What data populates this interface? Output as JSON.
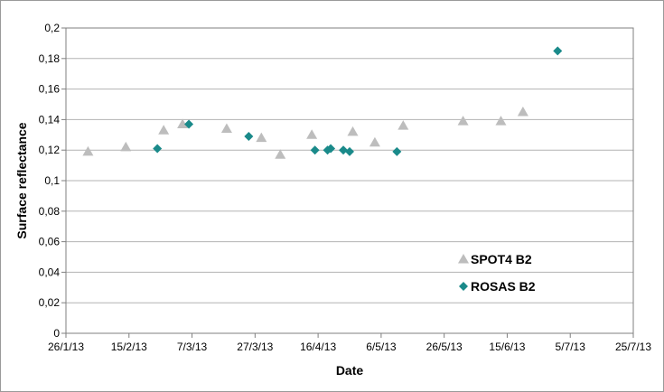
{
  "chart_data": {
    "type": "scatter",
    "title": "",
    "xlabel": "Date",
    "ylabel": "Surface reflectance",
    "ylim": [
      0,
      0.2
    ],
    "yticks": [
      "0",
      "0,02",
      "0,04",
      "0,06",
      "0,08",
      "0,1",
      "0,12",
      "0,14",
      "0,16",
      "0,18",
      "0,2"
    ],
    "xlim": [
      "2013-01-26",
      "2013-07-25"
    ],
    "xticks": [
      "26/1/13",
      "15/2/13",
      "7/3/13",
      "27/3/13",
      "16/4/13",
      "6/5/13",
      "26/5/13",
      "15/6/13",
      "5/7/13",
      "25/7/13"
    ],
    "grid": true,
    "legend_position": "bottom-right",
    "series": [
      {
        "name": "SPOT4 B2",
        "marker": "triangle",
        "color": "#bdbdbd",
        "points": [
          {
            "x": "2013-02-02",
            "y": 0.119
          },
          {
            "x": "2013-02-14",
            "y": 0.122
          },
          {
            "x": "2013-02-26",
            "y": 0.133
          },
          {
            "x": "2013-03-04",
            "y": 0.137
          },
          {
            "x": "2013-03-18",
            "y": 0.134
          },
          {
            "x": "2013-03-29",
            "y": 0.128
          },
          {
            "x": "2013-04-04",
            "y": 0.117
          },
          {
            "x": "2013-04-14",
            "y": 0.13
          },
          {
            "x": "2013-04-27",
            "y": 0.132
          },
          {
            "x": "2013-05-04",
            "y": 0.125
          },
          {
            "x": "2013-05-13",
            "y": 0.136
          },
          {
            "x": "2013-06-01",
            "y": 0.139
          },
          {
            "x": "2013-06-13",
            "y": 0.139
          },
          {
            "x": "2013-06-20",
            "y": 0.145
          }
        ]
      },
      {
        "name": "ROSAS B2",
        "marker": "diamond",
        "color": "#1a8a8a",
        "points": [
          {
            "x": "2013-02-24",
            "y": 0.121
          },
          {
            "x": "2013-03-06",
            "y": 0.137
          },
          {
            "x": "2013-03-25",
            "y": 0.129
          },
          {
            "x": "2013-04-15",
            "y": 0.12
          },
          {
            "x": "2013-04-19",
            "y": 0.12
          },
          {
            "x": "2013-04-20",
            "y": 0.121
          },
          {
            "x": "2013-04-24",
            "y": 0.12
          },
          {
            "x": "2013-04-26",
            "y": 0.119
          },
          {
            "x": "2013-05-11",
            "y": 0.119
          },
          {
            "x": "2013-07-01",
            "y": 0.185
          }
        ]
      }
    ]
  }
}
